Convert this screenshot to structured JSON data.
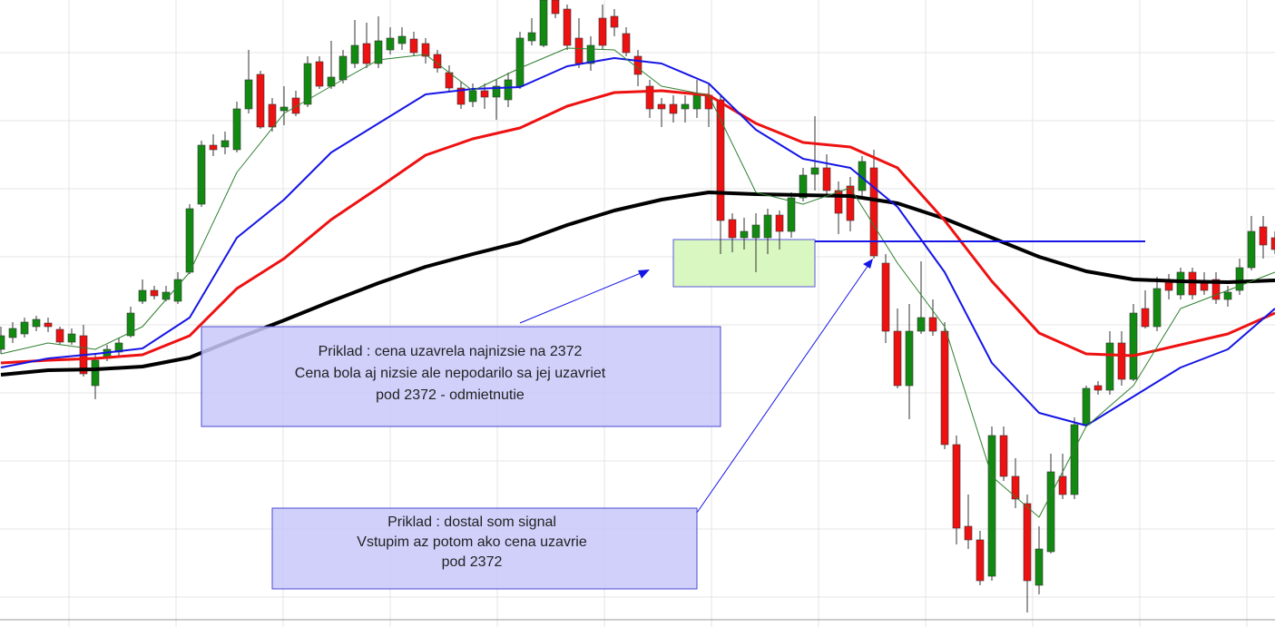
{
  "chart_data": {
    "type": "candlestick",
    "xlim": [
      -0.077,
      108
    ],
    "ylim": [
      2159.5,
      2505
    ],
    "up_color": "#128a12",
    "down_color": "#ee1111",
    "candles": [
      [
        2312.5,
        2325,
        2310,
        2320
      ],
      [
        2319,
        2327.5,
        2316,
        2324
      ],
      [
        2321,
        2330,
        2319,
        2327.5
      ],
      [
        2325,
        2331,
        2322.5,
        2329
      ],
      [
        2327,
        2330,
        2322,
        2325
      ],
      [
        2323.5,
        2325,
        2315,
        2316.5
      ],
      [
        2316.5,
        2324,
        2315,
        2321
      ],
      [
        2320,
        2326,
        2297.5,
        2299
      ],
      [
        2292.5,
        2310,
        2285,
        2306.5
      ],
      [
        2307.5,
        2315,
        2306,
        2312.5
      ],
      [
        2311,
        2319,
        2309,
        2316
      ],
      [
        2320,
        2336,
        2319,
        2332.5
      ],
      [
        2339,
        2351,
        2337.5,
        2345
      ],
      [
        2345,
        2347.5,
        2340,
        2342
      ],
      [
        2340,
        2347.5,
        2339,
        2344
      ],
      [
        2339,
        2355,
        2337.5,
        2351
      ],
      [
        2355,
        2392.5,
        2354,
        2390
      ],
      [
        2392.5,
        2427.5,
        2391,
        2425
      ],
      [
        2425,
        2431,
        2419,
        2422.5
      ],
      [
        2424,
        2432.5,
        2420,
        2427.5
      ],
      [
        2422.5,
        2449,
        2421,
        2445
      ],
      [
        2445,
        2477.5,
        2442.5,
        2461
      ],
      [
        2464,
        2466,
        2434,
        2435
      ],
      [
        2447.5,
        2451,
        2432.5,
        2435
      ],
      [
        2444,
        2457.5,
        2436,
        2446
      ],
      [
        2451,
        2455,
        2441,
        2442.5
      ],
      [
        2447.5,
        2474,
        2446,
        2470
      ],
      [
        2471,
        2474,
        2456,
        2457.5
      ],
      [
        2457.5,
        2482.5,
        2456,
        2462.5
      ],
      [
        2461,
        2477.5,
        2459,
        2474
      ],
      [
        2470,
        2494,
        2467.5,
        2480
      ],
      [
        2481,
        2492.5,
        2467.5,
        2470
      ],
      [
        2470,
        2496,
        2467.5,
        2482.5
      ],
      [
        2477.5,
        2490,
        2475,
        2484
      ],
      [
        2481,
        2490,
        2477.5,
        2485
      ],
      [
        2483.5,
        2487.5,
        2474,
        2476
      ],
      [
        2481,
        2484,
        2470,
        2474
      ],
      [
        2475,
        2477.5,
        2465,
        2467.5
      ],
      [
        2465,
        2469,
        2454,
        2456.5
      ],
      [
        2456.5,
        2460,
        2445,
        2447.5
      ],
      [
        2449,
        2459,
        2446,
        2455
      ],
      [
        2455,
        2459,
        2445,
        2451.5
      ],
      [
        2451.5,
        2461,
        2439,
        2457.5
      ],
      [
        2450,
        2465,
        2446,
        2461
      ],
      [
        2457.5,
        2487.5,
        2456,
        2484
      ],
      [
        2482.5,
        2495,
        2480,
        2487
      ],
      [
        2480,
        2505,
        2479,
        2505
      ],
      [
        2505,
        2505,
        2495,
        2497.5
      ],
      [
        2500,
        2502.5,
        2477.5,
        2480
      ],
      [
        2484,
        2495,
        2467.5,
        2470
      ],
      [
        2470,
        2485,
        2466,
        2480
      ],
      [
        2495,
        2502.5,
        2477.5,
        2480
      ],
      [
        2496,
        2500,
        2485,
        2490
      ],
      [
        2486.5,
        2490,
        2474,
        2476
      ],
      [
        2474,
        2477.5,
        2457.5,
        2464
      ],
      [
        2457.5,
        2461,
        2440,
        2445
      ],
      [
        2447.5,
        2451,
        2435,
        2445
      ],
      [
        2447.5,
        2452.5,
        2437.5,
        2442.5
      ],
      [
        2445,
        2452.5,
        2437.5,
        2447.5
      ],
      [
        2445,
        2461,
        2440,
        2452.5
      ],
      [
        2452.5,
        2459,
        2435,
        2445
      ],
      [
        2450,
        2452.5,
        2365,
        2383.5
      ],
      [
        2384,
        2387.5,
        2366,
        2374
      ],
      [
        2374,
        2385,
        2367.5,
        2377.5
      ],
      [
        2374,
        2387.5,
        2355,
        2381
      ],
      [
        2374,
        2390,
        2365,
        2386.5
      ],
      [
        2386.5,
        2389,
        2367.5,
        2377.5
      ],
      [
        2377.5,
        2399,
        2374,
        2396
      ],
      [
        2396,
        2412.5,
        2394,
        2408.5
      ],
      [
        2409,
        2441,
        2400,
        2412.5
      ],
      [
        2412.5,
        2420,
        2397.5,
        2400
      ],
      [
        2400,
        2405,
        2376,
        2387.5
      ],
      [
        2402.5,
        2407.5,
        2377.5,
        2383.5
      ],
      [
        2400,
        2419,
        2396,
        2416
      ],
      [
        2412.5,
        2422.5,
        2362.5,
        2364
      ],
      [
        2360,
        2365,
        2316,
        2322.5
      ],
      [
        2322.5,
        2335,
        2291,
        2292.5
      ],
      [
        2292.5,
        2337.5,
        2274,
        2322.5
      ],
      [
        2322.5,
        2361,
        2321,
        2330
      ],
      [
        2330,
        2340,
        2320,
        2322.5
      ],
      [
        2322.5,
        2327.5,
        2257.5,
        2260
      ],
      [
        2260,
        2265,
        2205,
        2214
      ],
      [
        2215,
        2232.5,
        2202.5,
        2207.5
      ],
      [
        2207.5,
        2212.5,
        2182.5,
        2185
      ],
      [
        2187.5,
        2270,
        2185,
        2265
      ],
      [
        2265,
        2270,
        2240,
        2242.5
      ],
      [
        2242.5,
        2252.5,
        2225,
        2230
      ],
      [
        2227.5,
        2232.5,
        2167.5,
        2185
      ],
      [
        2182.5,
        2215,
        2177.5,
        2202.5
      ],
      [
        2201,
        2255,
        2200,
        2245
      ],
      [
        2242.5,
        2255,
        2230,
        2232.5
      ],
      [
        2232.5,
        2275,
        2230,
        2271
      ],
      [
        2271,
        2292.5,
        2270,
        2291
      ],
      [
        2292.5,
        2295,
        2287.5,
        2290
      ],
      [
        2290,
        2322.5,
        2287.5,
        2316
      ],
      [
        2316,
        2322.5,
        2292.5,
        2296
      ],
      [
        2296,
        2337.5,
        2295,
        2332.5
      ],
      [
        2335,
        2345,
        2324,
        2325
      ],
      [
        2325,
        2352.5,
        2322.5,
        2346
      ],
      [
        2350,
        2354,
        2340,
        2345
      ],
      [
        2342.5,
        2357.5,
        2340,
        2355
      ],
      [
        2355,
        2357.5,
        2340,
        2342.5
      ],
      [
        2350,
        2355,
        2342.5,
        2345
      ],
      [
        2351,
        2355,
        2337.5,
        2340
      ],
      [
        2340,
        2347.5,
        2336,
        2344
      ],
      [
        2345,
        2362.5,
        2342.5,
        2357.5
      ],
      [
        2357.5,
        2386,
        2356,
        2377.5
      ],
      [
        2380,
        2386,
        2362.5,
        2370
      ],
      [
        2374,
        2377.5,
        2365,
        2367.5
      ]
    ],
    "x": [
      0,
      4,
      8,
      12,
      16,
      20,
      24,
      28,
      32,
      36,
      40,
      44,
      48,
      52,
      56,
      60,
      64,
      68,
      72,
      76,
      80,
      84,
      88,
      92,
      96,
      100,
      104,
      108
    ],
    "series": [
      {
        "color": "#000000",
        "width": 4,
        "values": [
          2298.5,
          2301,
          2301.5,
          2303,
          2308,
          2318.5,
          2328.5,
          2339,
          2349,
          2358,
          2365,
          2371.5,
          2381,
          2389,
          2395,
          2399,
          2398,
          2397.5,
          2397,
          2393,
          2384.5,
          2374,
          2363.5,
          2355.5,
          2351,
          2350,
          2349.5,
          2350.5
        ]
      },
      {
        "color": "#ee1111",
        "width": 3,
        "values": [
          2305,
          2306.5,
          2307.5,
          2309.5,
          2320,
          2346,
          2362.5,
          2384,
          2401.5,
          2419.5,
          2428.5,
          2434.5,
          2446.5,
          2454,
          2455,
          2452.5,
          2437,
          2426.5,
          2424,
          2412.5,
          2383.5,
          2350,
          2321.5,
          2310,
          2309,
          2315,
          2321,
          2332.5
        ]
      },
      {
        "color": "#1515e6",
        "width": 2,
        "values": [
          2302.5,
          2307.5,
          2310,
          2313,
          2330,
          2374,
          2395,
          2421,
          2437,
          2453,
          2456,
          2457,
          2468.5,
          2473,
          2470,
          2459,
          2433.5,
          2417.5,
          2412.5,
          2391,
          2355,
          2305,
          2277.5,
          2270.5,
          2286.5,
          2302.5,
          2312.5,
          2335
        ]
      },
      {
        "color": "#2f7f2f",
        "width": 1,
        "values": [
          2310,
          2316,
          2312.5,
          2325,
          2355,
          2410,
          2442.5,
          2457.5,
          2472,
          2475,
          2455,
          2467.5,
          2478.5,
          2477.5,
          2457.5,
          2452.5,
          2399,
          2392.5,
          2401.5,
          2360,
          2325,
          2242.5,
          2220,
          2270,
          2292.5,
          2335,
          2345,
          2355
        ]
      }
    ],
    "hline": {
      "value": 2372,
      "x": [
        69,
        97
      ],
      "color": "#1515e6"
    },
    "highlight": {
      "x": [
        57,
        69
      ],
      "y": [
        2347,
        2373
      ],
      "color": "#d9f7c0"
    },
    "annotations": [
      {
        "lines": [
          "Priklad : cena uzavrela najnizsie na 2372",
          "Cena bola aj nizsie ale nepodarilo sa jej uzavriet",
          "pod 2372 - odmietnutie"
        ]
      },
      {
        "lines": [
          "Priklad : dostal som signal",
          "Vstupim az potom ako cena uzavrie",
          "pod 2372"
        ]
      }
    ]
  }
}
